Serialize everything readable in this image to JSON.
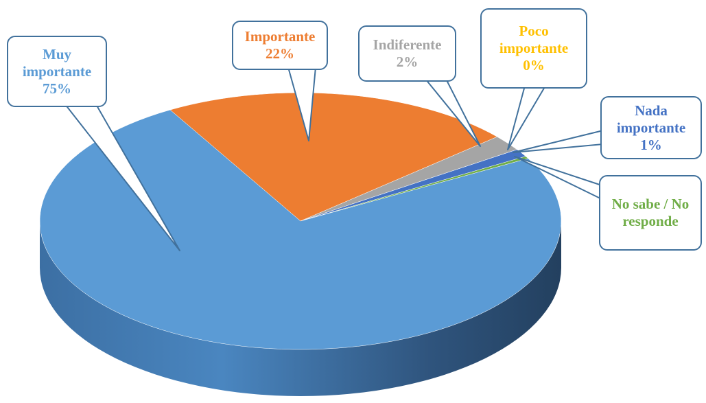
{
  "chart_data": {
    "type": "pie3d",
    "categories": [
      "Muy importante",
      "Importante",
      "Indiferente",
      "Poco importante",
      "Nada importante",
      "No sabe / No responde"
    ],
    "values": [
      75,
      22,
      2,
      0,
      1,
      0.3
    ],
    "value_labels": [
      "75%",
      "22%",
      "2%",
      "0%",
      "1%",
      null
    ],
    "colors": [
      "#5b9bd5",
      "#ed7d31",
      "#a5a5a5",
      "#ffc000",
      "#4472c4",
      "#70ad47"
    ]
  }
}
